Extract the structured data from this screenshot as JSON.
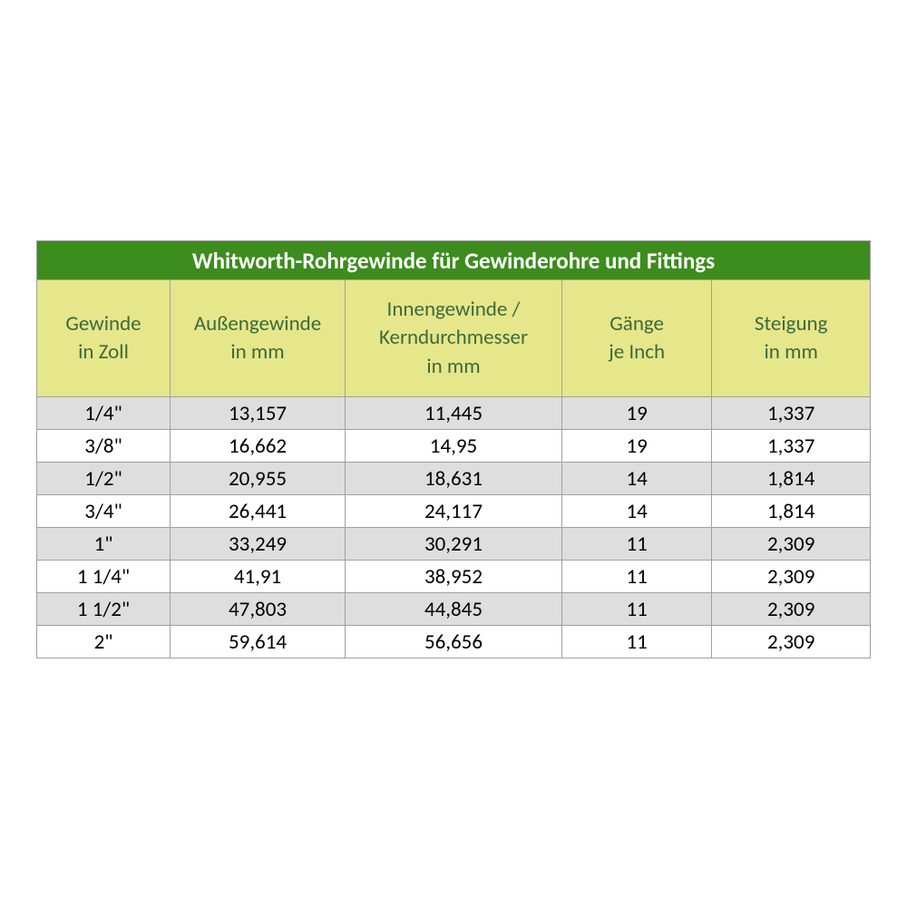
{
  "table": {
    "type": "table",
    "title": "Whitworth-Rohrgewinde für Gewinderohre und Fittings",
    "title_bg": "#3c8c1e",
    "title_color": "#ffffff",
    "header_bg": "#e6e68a",
    "header_color": "#3c6b3c",
    "row_odd_bg": "#dedede",
    "row_even_bg": "#ffffff",
    "border_color": "#a0a0a0",
    "font_family": "Calibri",
    "title_fontsize": 25,
    "header_fontsize": 23,
    "cell_fontsize": 23,
    "column_widths_pct": [
      16,
      21,
      26,
      18,
      19
    ],
    "columns": [
      {
        "line1": "Gewinde",
        "line2": "in Zoll"
      },
      {
        "line1": "Außengewinde",
        "line2": "in mm"
      },
      {
        "line1": "Innengewinde /",
        "line2": "Kerndurchmesser",
        "line3": "in mm"
      },
      {
        "line1": "Gänge",
        "line2": "je Inch"
      },
      {
        "line1": "Steigung",
        "line2": "in mm"
      }
    ],
    "rows": [
      [
        "1/4\"",
        "13,157",
        "11,445",
        "19",
        "1,337"
      ],
      [
        "3/8\"",
        "16,662",
        "14,95",
        "19",
        "1,337"
      ],
      [
        "1/2\"",
        "20,955",
        "18,631",
        "14",
        "1,814"
      ],
      [
        "3/4\"",
        "26,441",
        "24,117",
        "14",
        "1,814"
      ],
      [
        "1\"",
        "33,249",
        "30,291",
        "11",
        "2,309"
      ],
      [
        "1 1/4\"",
        "41,91",
        "38,952",
        "11",
        "2,309"
      ],
      [
        "1 1/2\"",
        "47,803",
        "44,845",
        "11",
        "2,309"
      ],
      [
        "2\"",
        "59,614",
        "56,656",
        "11",
        "2,309"
      ]
    ]
  }
}
